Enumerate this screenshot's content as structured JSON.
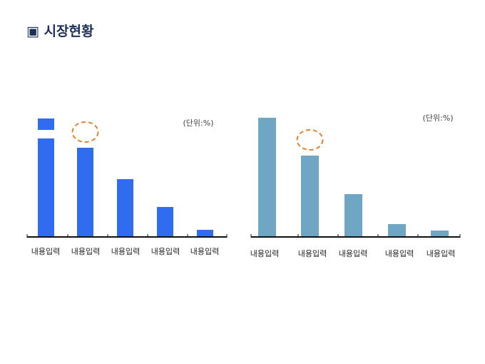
{
  "title": "▣ 시장현황",
  "chart_data": [
    {
      "type": "bar",
      "title": "",
      "unit_label": "(단위:%)",
      "categories": [
        "내용입력",
        "내용입력",
        "내용입력",
        "내용입력",
        "내용입력"
      ],
      "values": [
        165,
        124,
        80,
        41,
        9
      ],
      "broken": [
        true,
        false,
        false,
        false,
        false
      ],
      "highlight_index": 1,
      "color": "#2f6cf0",
      "ylim": [
        0,
        170
      ],
      "grid": false
    },
    {
      "type": "bar",
      "title": "",
      "unit_label": "(단위:%)",
      "categories": [
        "내용입력",
        "내용입력",
        "내용입력",
        "내용입력",
        "내용입력"
      ],
      "values": [
        166,
        113,
        59,
        17,
        8
      ],
      "highlight_index": 1,
      "color": "#6ea6c4",
      "ylim": [
        0,
        170
      ],
      "grid": false
    }
  ],
  "highlight_color": "#e8802a"
}
